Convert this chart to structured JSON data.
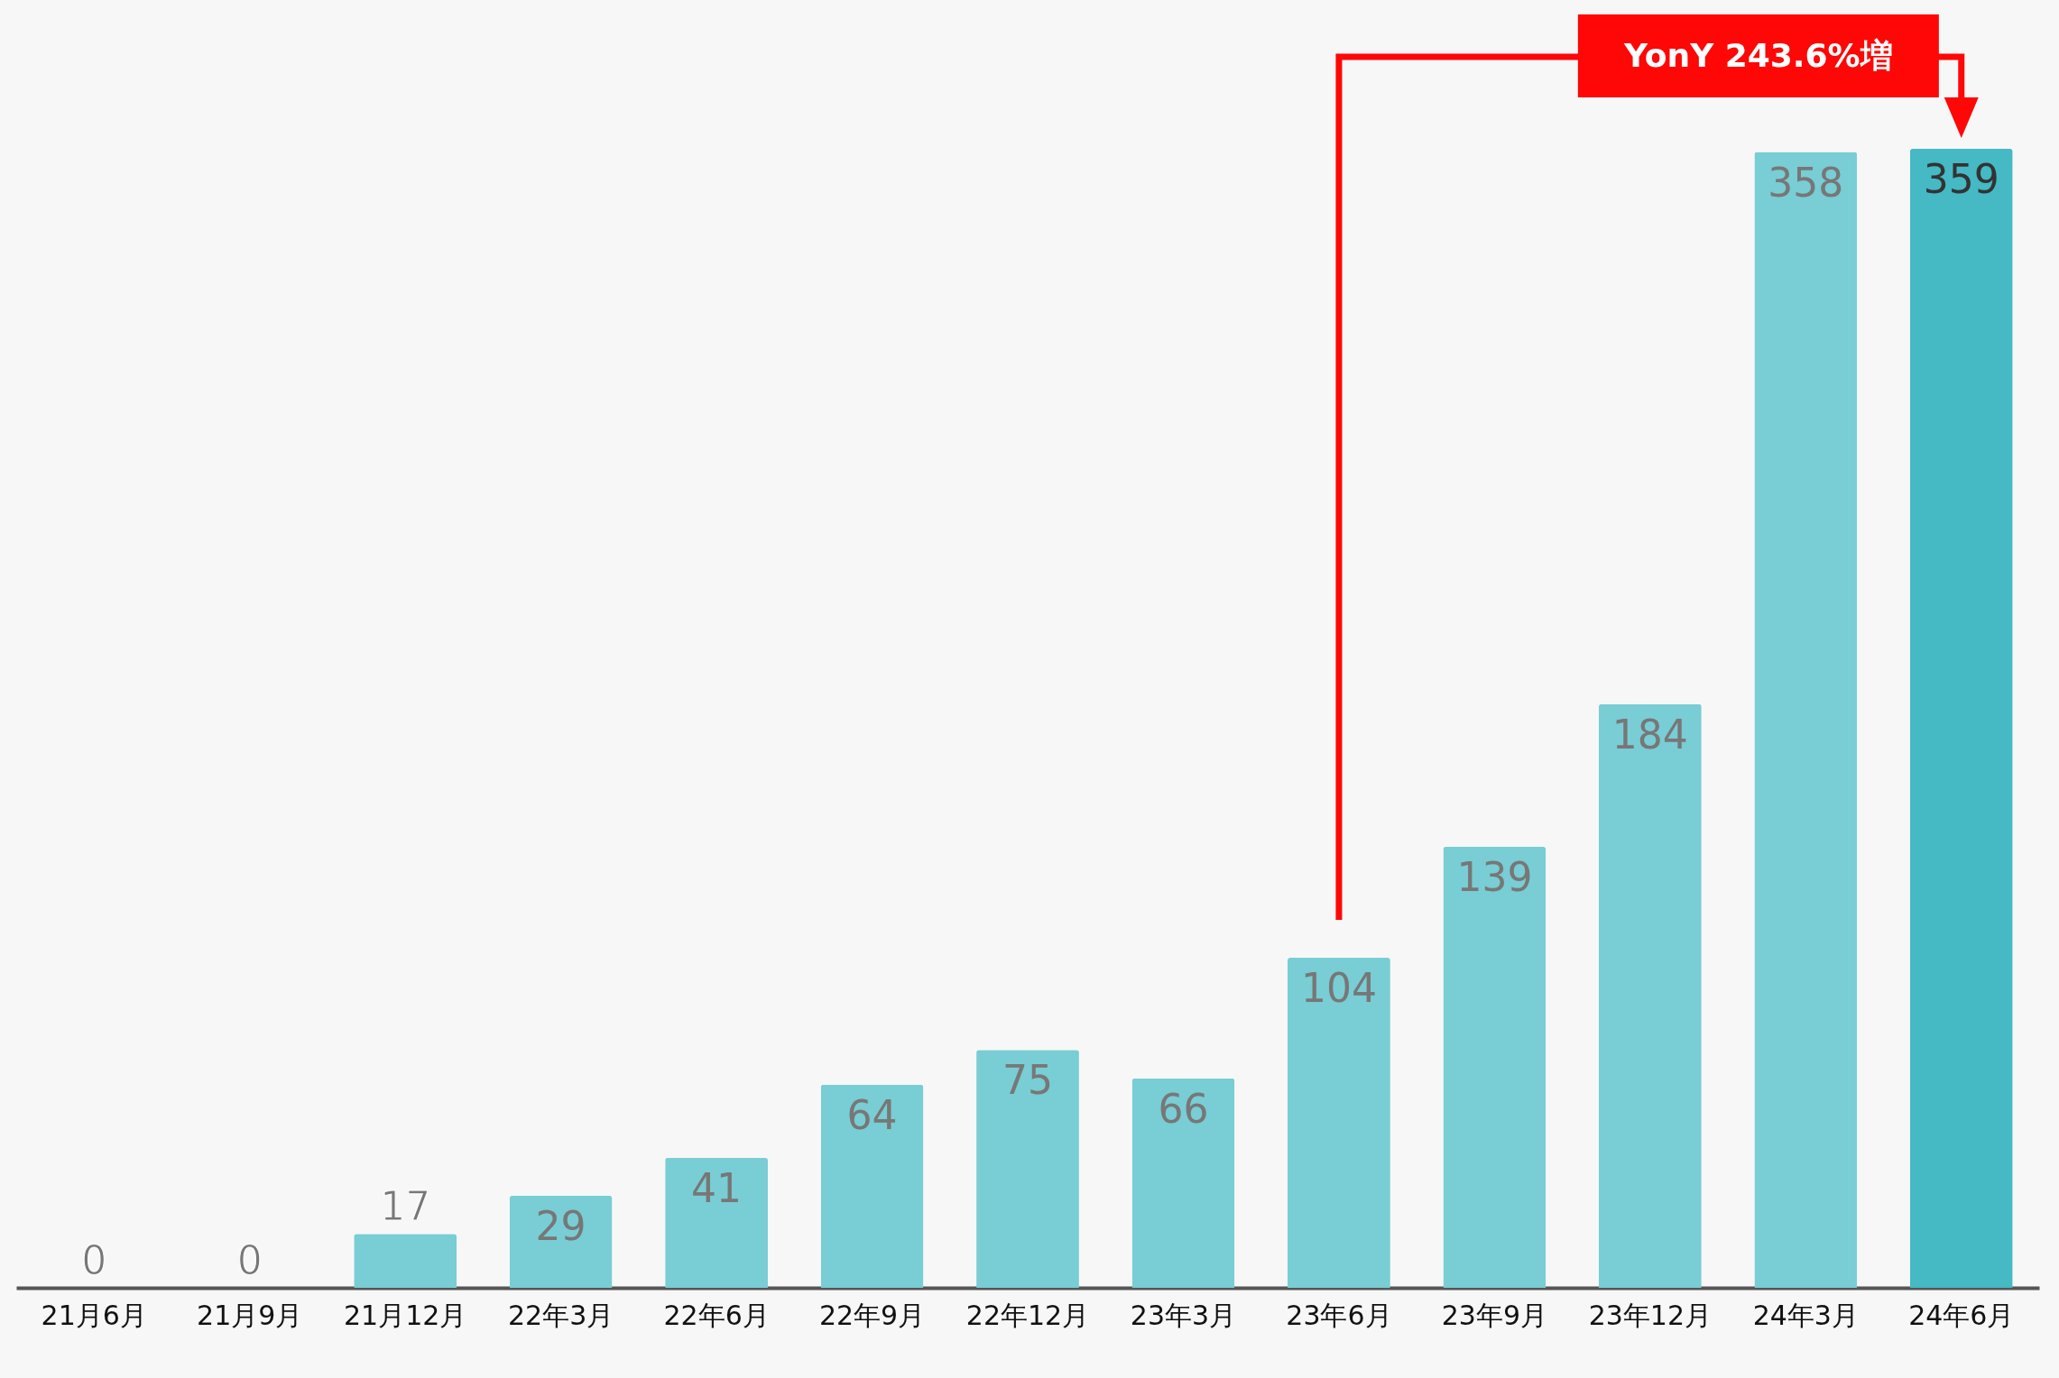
{
  "chart_data": {
    "type": "bar",
    "categories": [
      "21月6月",
      "21月9月",
      "21月12月",
      "22年3月",
      "22年6月",
      "22年9月",
      "22年12月",
      "23年3月",
      "23年6月",
      "23年9月",
      "23年12月",
      "24年3月",
      "24年6月"
    ],
    "values": [
      0,
      0,
      17,
      29,
      41,
      64,
      75,
      66,
      104,
      139,
      184,
      358,
      359
    ],
    "colors": [
      "#79cdd4",
      "#79cdd4",
      "#79cdd4",
      "#79cdd4",
      "#79cdd4",
      "#79cdd4",
      "#79cdd4",
      "#79cdd4",
      "#79cdd4",
      "#79cdd4",
      "#79cdd4",
      "#79cdd4",
      "#45b9c4"
    ],
    "data_labels": true,
    "grid": false,
    "annotations": [
      "YonY 243.6%増"
    ]
  }
}
